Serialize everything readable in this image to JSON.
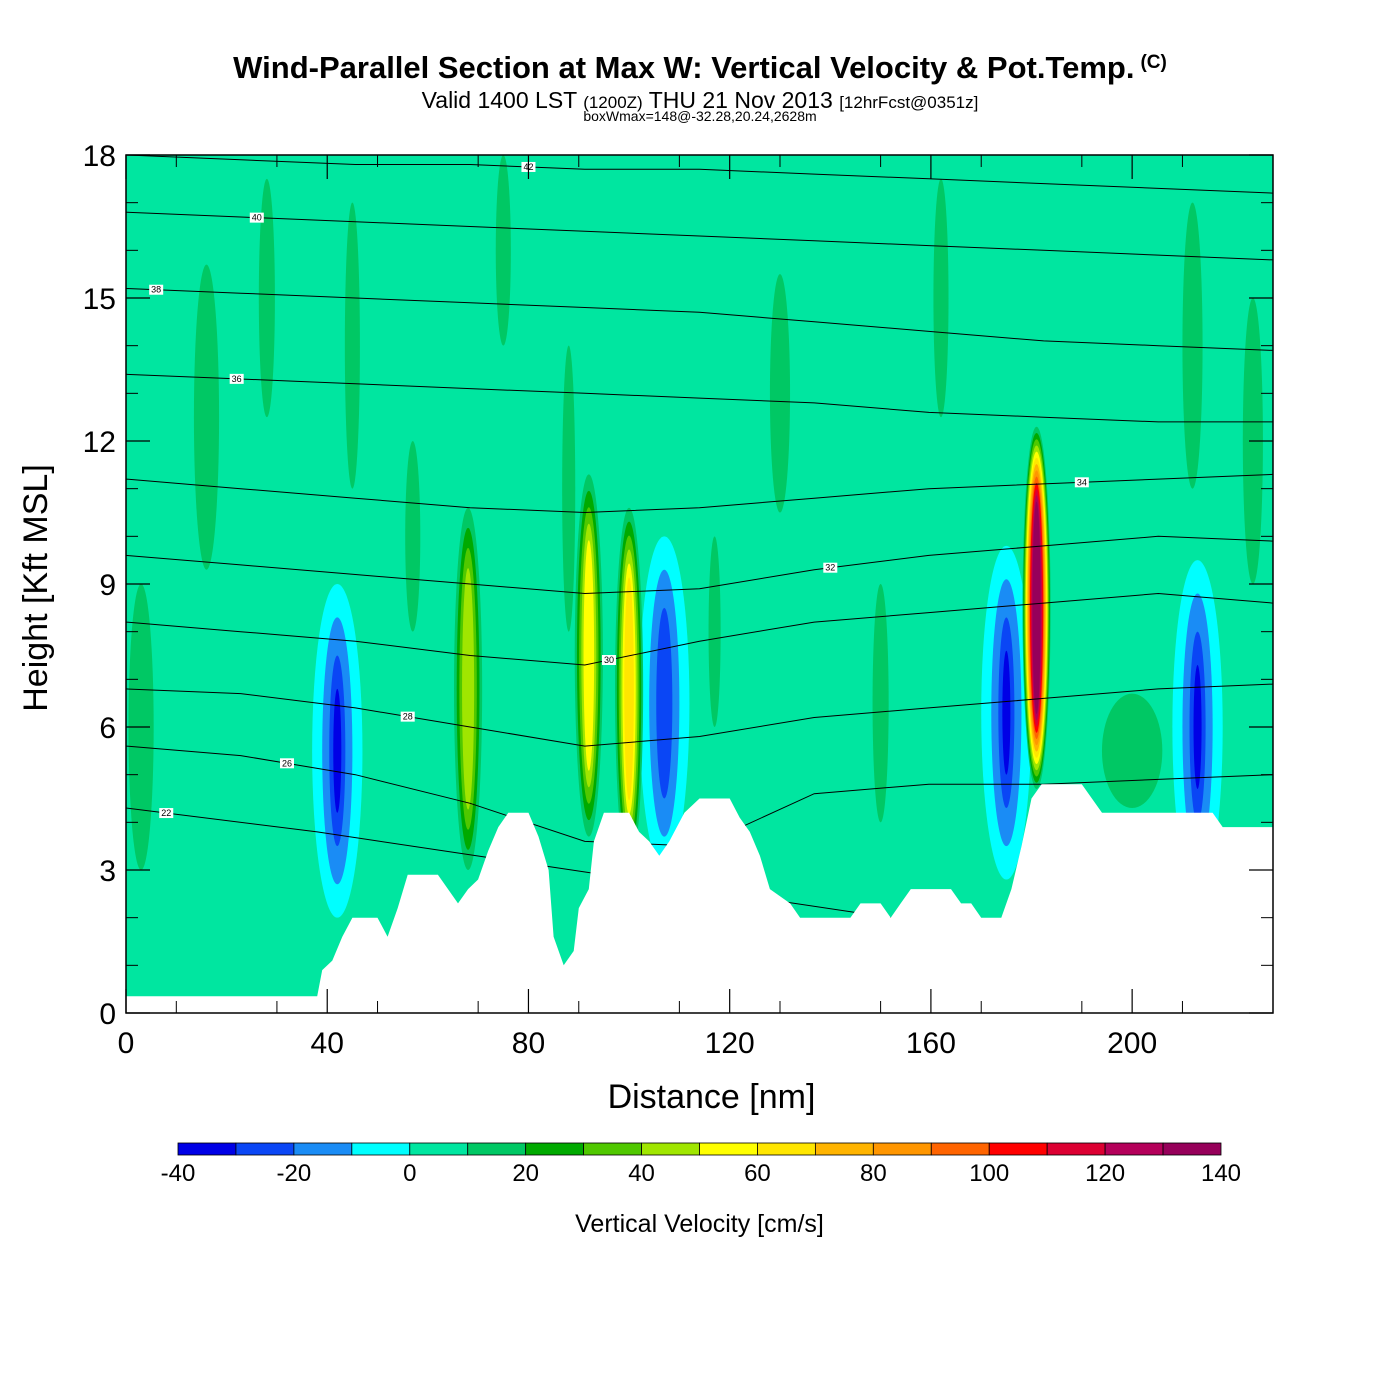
{
  "header": {
    "title": "Wind-Parallel Section at Max W: Vertical Velocity & Pot.Temp.",
    "copyright": "(C)",
    "valid_prefix": "Valid 1400 LST",
    "valid_utc": "(1200Z)",
    "valid_date": "THU 21 Nov 2013",
    "forecast": "[12hrFcst@0351z]",
    "box_info": "boxWmax=148@-32.28,20.24,2628m"
  },
  "chart_data": {
    "type": "heatmap",
    "title": "Wind-Parallel Section at Max W: Vertical Velocity & Pot.Temp.",
    "xlabel": "Distance [nm]",
    "ylabel": "Height [Kft MSL]",
    "xlim": [
      0,
      228
    ],
    "ylim": [
      0,
      18
    ],
    "x_ticks": [
      0,
      40,
      80,
      120,
      160,
      200
    ],
    "y_ticks": [
      0,
      3,
      6,
      9,
      12,
      15,
      18
    ],
    "colorbar": {
      "label": "Vertical Velocity [cm/s]",
      "ticks": [
        -40,
        -20,
        0,
        20,
        40,
        60,
        80,
        100,
        120,
        140
      ],
      "levels": [
        -40,
        -30,
        -20,
        -10,
        0,
        10,
        20,
        30,
        40,
        50,
        60,
        70,
        80,
        90,
        100,
        110,
        120,
        130,
        140
      ],
      "colors": [
        "#0000e6",
        "#0a46f5",
        "#1a8cf5",
        "#00ffff",
        "#00e6a0",
        "#00c864",
        "#00aa00",
        "#50c800",
        "#a0e600",
        "#ffff00",
        "#ffe600",
        "#ffb400",
        "#ff9600",
        "#ff6400",
        "#ff0000",
        "#dc0032",
        "#b4005a",
        "#96005a"
      ]
    },
    "terrain": [
      [
        0,
        0.35
      ],
      [
        38,
        0.35
      ],
      [
        39,
        0.9
      ],
      [
        41,
        1.1
      ],
      [
        43,
        1.6
      ],
      [
        45,
        2.0
      ],
      [
        50,
        2.0
      ],
      [
        52,
        1.6
      ],
      [
        54,
        2.2
      ],
      [
        56,
        2.9
      ],
      [
        62,
        2.9
      ],
      [
        64,
        2.6
      ],
      [
        66,
        2.3
      ],
      [
        68,
        2.6
      ],
      [
        70,
        2.8
      ],
      [
        72,
        3.4
      ],
      [
        74,
        3.9
      ],
      [
        76,
        4.2
      ],
      [
        80,
        4.2
      ],
      [
        82,
        3.7
      ],
      [
        84,
        3.0
      ],
      [
        85,
        1.6
      ],
      [
        87,
        1.0
      ],
      [
        89,
        1.3
      ],
      [
        90,
        2.2
      ],
      [
        92,
        2.6
      ],
      [
        93,
        3.6
      ],
      [
        95,
        4.2
      ],
      [
        100,
        4.2
      ],
      [
        102,
        3.8
      ],
      [
        104,
        3.6
      ],
      [
        106,
        3.3
      ],
      [
        108,
        3.6
      ],
      [
        111,
        4.2
      ],
      [
        114,
        4.5
      ],
      [
        120,
        4.5
      ],
      [
        122,
        4.1
      ],
      [
        124,
        3.8
      ],
      [
        126,
        3.3
      ],
      [
        128,
        2.6
      ],
      [
        132,
        2.3
      ],
      [
        134,
        2.0
      ],
      [
        144,
        2.0
      ],
      [
        146,
        2.3
      ],
      [
        150,
        2.3
      ],
      [
        152,
        2.0
      ],
      [
        154,
        2.3
      ],
      [
        156,
        2.6
      ],
      [
        164,
        2.6
      ],
      [
        166,
        2.3
      ],
      [
        168,
        2.3
      ],
      [
        170,
        2.0
      ],
      [
        174,
        2.0
      ],
      [
        176,
        2.6
      ],
      [
        178,
        3.5
      ],
      [
        180,
        4.5
      ],
      [
        182,
        4.8
      ],
      [
        190,
        4.8
      ],
      [
        192,
        4.5
      ],
      [
        194,
        4.2
      ],
      [
        216,
        4.2
      ],
      [
        218,
        3.9
      ],
      [
        228,
        3.9
      ]
    ],
    "isentropes": [
      {
        "value": 22,
        "heights": [
          4.3,
          3.8,
          3.2,
          2.6,
          2.0,
          1.4,
          1.0
        ]
      },
      {
        "value": 26,
        "heights": [
          5.6,
          5.4,
          5.0,
          4.4,
          3.6,
          3.5,
          4.6,
          4.8,
          4.8,
          4.9,
          5.0
        ]
      },
      {
        "value": 28,
        "heights": [
          6.8,
          6.7,
          6.4,
          6.0,
          5.6,
          5.8,
          6.2,
          6.4,
          6.6,
          6.8,
          6.9
        ]
      },
      {
        "value": 30,
        "heights": [
          8.2,
          8.0,
          7.8,
          7.5,
          7.3,
          7.8,
          8.2,
          8.4,
          8.6,
          8.8,
          8.6
        ]
      },
      {
        "value": 32,
        "heights": [
          9.6,
          9.4,
          9.2,
          9.0,
          8.8,
          8.9,
          9.3,
          9.6,
          9.8,
          10.0,
          9.9
        ]
      },
      {
        "value": 34,
        "heights": [
          11.2,
          11.0,
          10.8,
          10.6,
          10.5,
          10.6,
          10.8,
          11.0,
          11.1,
          11.2,
          11.3
        ]
      },
      {
        "value": 36,
        "heights": [
          13.4,
          13.3,
          13.2,
          13.1,
          13.0,
          12.9,
          12.8,
          12.6,
          12.5,
          12.4,
          12.4
        ]
      },
      {
        "value": 38,
        "heights": [
          15.2,
          15.1,
          15.0,
          14.9,
          14.8,
          14.7,
          14.5,
          14.3,
          14.1,
          14.0,
          13.9
        ]
      },
      {
        "value": 40,
        "heights": [
          16.8,
          16.7,
          16.6,
          16.5,
          16.4,
          16.3,
          16.2,
          16.1,
          16.0,
          15.9,
          15.8
        ]
      },
      {
        "value": 42,
        "heights": [
          18.0,
          17.9,
          17.8,
          17.8,
          17.7,
          17.7,
          17.6,
          17.5,
          17.4,
          17.3,
          17.2
        ]
      }
    ],
    "contour_labels": [
      "22",
      "26",
      "28",
      "30",
      "32",
      "34",
      "36",
      "38",
      "40",
      "42"
    ],
    "updrafts": [
      {
        "x": 68,
        "y": 6.8,
        "w_peak": 45
      },
      {
        "x": 92,
        "y": 7.5,
        "w_peak": 55
      },
      {
        "x": 100,
        "y": 6.8,
        "w_peak": 60
      },
      {
        "x": 181,
        "y": 8.5,
        "w_peak": 148
      }
    ],
    "downdrafts": [
      {
        "x": 42,
        "y": 5.5,
        "w_min": -40
      },
      {
        "x": 107,
        "y": 6.5,
        "w_min": -30
      },
      {
        "x": 175,
        "y": 6.3,
        "w_min": -40
      },
      {
        "x": 213,
        "y": 6.0,
        "w_min": -40
      }
    ]
  }
}
